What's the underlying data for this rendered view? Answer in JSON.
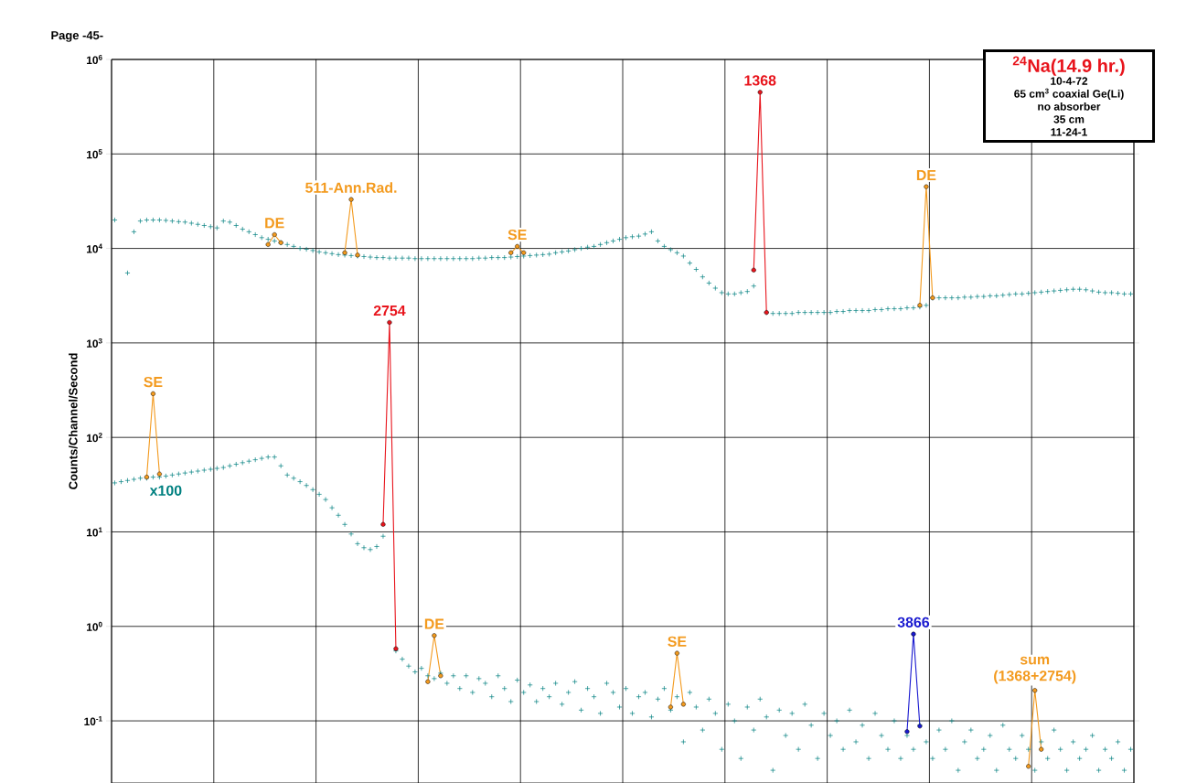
{
  "chart_data": {
    "type": "scatter",
    "ylabel": "Counts/Channel/Second",
    "categories": [
      null,
      null,
      null,
      null,
      null,
      null,
      null,
      null,
      null,
      null,
      null,
      null,
      null,
      null,
      null,
      null,
      null,
      null,
      null,
      null,
      null,
      null,
      null,
      null,
      null,
      null,
      null,
      null,
      null,
      null,
      null,
      null,
      null,
      null,
      null,
      null,
      null,
      null,
      null,
      null,
      null,
      null,
      null,
      null,
      null,
      null,
      null,
      null,
      null,
      null,
      null,
      null,
      null,
      null,
      null,
      null,
      null,
      null,
      null,
      null,
      null,
      null,
      null,
      null,
      null,
      null,
      null,
      null,
      null,
      null,
      null,
      null,
      null,
      null,
      null,
      null,
      null,
      null,
      null,
      null,
      null,
      null,
      null,
      null,
      null,
      null,
      null,
      null,
      null,
      null,
      null,
      null,
      null,
      null,
      null,
      null,
      null,
      null,
      null,
      null,
      null,
      null,
      null,
      null,
      null,
      null,
      null,
      null,
      null,
      null,
      null,
      null,
      null,
      null,
      null,
      null,
      null,
      null,
      null,
      null,
      null,
      null,
      null,
      null,
      null,
      null,
      null,
      null,
      null,
      null,
      null,
      null,
      null,
      null,
      null,
      null,
      null,
      null,
      null,
      null,
      null,
      null,
      null,
      null,
      null,
      null,
      null,
      null,
      null,
      null,
      null,
      null,
      null,
      null,
      null,
      null,
      null,
      null,
      null,
      null
    ],
    "ylim": [
      0.022,
      1000000
    ],
    "log": true,
    "yticks": [
      {
        "value": 0.1,
        "label": "10$^{-1}$"
      },
      {
        "value": 1,
        "label": "10$^{0}$"
      },
      {
        "value": 10,
        "label": "10$^{1}$"
      },
      {
        "value": 100,
        "label": "10$^{2}$"
      },
      {
        "value": 1000,
        "label": "10$^{3}$"
      },
      {
        "value": 10000,
        "label": "10$^{4}$"
      },
      {
        "value": 100000,
        "label": "10$^{5}$"
      },
      {
        "value": 1000000,
        "label": "10$^{6}$"
      }
    ],
    "tick_labels": "y",
    "grid": true,
    "series": [
      {
        "marker": "cross",
        "color": "#008080",
        "values": [
          20000,
          null,
          5500,
          15000,
          19500,
          20000,
          20000,
          20000,
          19800,
          19500,
          19200,
          19000,
          18500,
          18000,
          17500,
          17000,
          16500,
          19500,
          19000,
          17500,
          16000,
          15000,
          14000,
          13000,
          12500,
          12000,
          11500,
          11000,
          10500,
          10000,
          9800,
          9500,
          9200,
          9000,
          8800,
          8600,
          8500,
          8400,
          8300,
          8200,
          8100,
          8000,
          8000,
          7900,
          7900,
          7900,
          7900,
          7800,
          7800,
          7800,
          7800,
          7800,
          7800,
          7800,
          7800,
          7800,
          7800,
          7900,
          7900,
          8000,
          8000,
          8000,
          8100,
          8200,
          8300,
          8400,
          8500,
          8600,
          8700,
          9000,
          9200,
          9400,
          9700,
          10000,
          10300,
          10500,
          11000,
          11500,
          12000,
          12500,
          13000,
          13300,
          13500,
          14200,
          15000,
          12000,
          10500,
          9700,
          9000,
          8300,
          7000,
          6000,
          5000,
          4300,
          3800,
          3400,
          3300,
          3300,
          3400,
          3500,
          4000,
          null,
          2100,
          2050,
          2050,
          2050,
          2050,
          2100,
          2100,
          2100,
          2100,
          2100,
          2100,
          2150,
          2150,
          2200,
          2200,
          2200,
          2200,
          2250,
          2250,
          2300,
          2300,
          2300,
          2350,
          2350,
          2400,
          2500,
          3000,
          3000,
          3000,
          3000,
          3000,
          3050,
          3050,
          3100,
          3100,
          3150,
          3150,
          3200,
          3250,
          3300,
          3300,
          3350,
          3400,
          3450,
          3500,
          3550,
          3600,
          3650,
          3700,
          3700,
          3650,
          3550,
          3450,
          3400,
          3400,
          3350,
          3300,
          3300
        ]
      },
      {
        "marker": "cross",
        "color": "#008080",
        "values": [
          33,
          34,
          35,
          36,
          37,
          37,
          38,
          38,
          39,
          40,
          41,
          42,
          43,
          44,
          45,
          46,
          47,
          48,
          50,
          52,
          54,
          56,
          58,
          60,
          62,
          62,
          50,
          40,
          37,
          34,
          31,
          28,
          25,
          22,
          18,
          15,
          12,
          9.5,
          7.5,
          6.8,
          6.5,
          7,
          9,
          null,
          null,
          null,
          null,
          null,
          null,
          null,
          null,
          null,
          null,
          null,
          null,
          null,
          null,
          null,
          null,
          null,
          null,
          null,
          null,
          null,
          null,
          null,
          null,
          null,
          null,
          null,
          null,
          null,
          null,
          null,
          null,
          null,
          null,
          null,
          null,
          null,
          null,
          null,
          null,
          null,
          null,
          null,
          null,
          null,
          null,
          null,
          null,
          null,
          null,
          null,
          null,
          null,
          null,
          null,
          null,
          null,
          null,
          null,
          null,
          null,
          null,
          null,
          null,
          null,
          null,
          null,
          null,
          null,
          null,
          null,
          null,
          null,
          null,
          null,
          null,
          null,
          null,
          null,
          null,
          null,
          null,
          null,
          null,
          null,
          null,
          null,
          null,
          null,
          null,
          null,
          null,
          null,
          null,
          null,
          null,
          null,
          null,
          null,
          null,
          null,
          null,
          null,
          null,
          null,
          null,
          null,
          null,
          null,
          null,
          null,
          null,
          null,
          null,
          null,
          null,
          null
        ]
      },
      {
        "marker": "cross",
        "color": "#008080",
        "values": [
          null,
          null,
          null,
          null,
          null,
          null,
          null,
          null,
          null,
          null,
          null,
          null,
          null,
          null,
          null,
          null,
          null,
          null,
          null,
          null,
          null,
          null,
          null,
          null,
          null,
          null,
          null,
          null,
          null,
          null,
          null,
          null,
          null,
          null,
          null,
          null,
          null,
          null,
          null,
          null,
          null,
          null,
          null,
          null,
          0.55,
          0.45,
          0.38,
          0.33,
          0.36,
          0.3,
          0.28,
          0.32,
          0.25,
          0.3,
          0.22,
          0.3,
          0.2,
          0.28,
          0.25,
          0.18,
          0.3,
          0.22,
          0.16,
          0.27,
          0.2,
          0.24,
          0.16,
          0.22,
          0.18,
          0.25,
          0.15,
          0.2,
          0.26,
          0.13,
          0.22,
          0.18,
          0.12,
          0.25,
          0.2,
          0.14,
          0.22,
          0.12,
          0.18,
          0.2,
          0.11,
          0.17,
          0.22,
          0.13,
          0.18,
          0.06,
          0.2,
          0.14,
          0.08,
          0.17,
          0.12,
          0.05,
          0.15,
          0.1,
          0.04,
          0.14,
          0.08,
          0.17,
          0.11,
          0.03,
          0.13,
          0.07,
          0.12,
          0.05,
          0.15,
          0.09,
          0.04,
          0.12,
          0.07,
          0.1,
          0.05,
          0.13,
          0.06,
          0.09,
          0.04,
          0.12,
          0.07,
          0.05,
          0.1,
          0.04,
          0.07,
          0.05,
          0.09,
          0.06,
          0.04,
          0.08,
          0.05,
          0.1,
          0.03,
          0.06,
          0.08,
          0.04,
          0.05,
          0.07,
          0.03,
          0.09,
          0.05,
          0.04,
          0.07,
          0.05,
          0.03,
          0.06,
          0.04,
          0.08,
          0.05,
          0.03,
          0.06,
          0.04,
          0.05,
          0.07,
          0.03,
          0.05,
          0.04,
          0.06,
          0.03,
          0.05
        ]
      },
      {
        "type": "line",
        "marker": "circle",
        "color": "#f39a1e",
        "values": [
          null,
          null,
          null,
          null,
          null,
          38,
          290,
          41,
          null,
          null,
          null,
          null,
          null,
          null,
          null,
          null,
          null,
          null,
          null,
          null,
          null,
          null,
          null,
          null,
          11000,
          14000,
          11500,
          null,
          null,
          null,
          null,
          null,
          null,
          null,
          null,
          null,
          9000,
          33000,
          8500,
          null,
          null,
          null,
          null,
          null,
          null,
          null,
          null,
          null,
          null,
          0.26,
          0.8,
          0.3,
          null,
          null,
          null,
          null,
          null,
          null,
          null,
          null,
          null,
          null,
          9000,
          10500,
          9000,
          null,
          null,
          null,
          null,
          null,
          null,
          null,
          null,
          null,
          null,
          null,
          null,
          null,
          null,
          null,
          null,
          null,
          null,
          null,
          null,
          null,
          null,
          0.14,
          0.52,
          0.15,
          null,
          null,
          null,
          null,
          null,
          null,
          null,
          null,
          null,
          null,
          null,
          null,
          null,
          null,
          null,
          null,
          null,
          null,
          null,
          null,
          null,
          null,
          null,
          null,
          null,
          null,
          null,
          null,
          null,
          null,
          null,
          null,
          null,
          null,
          null,
          null,
          2500,
          45000,
          3000,
          null,
          null,
          null,
          null,
          null,
          null,
          null,
          null,
          null,
          null,
          null,
          null,
          null,
          null,
          0.033,
          0.21,
          0.05,
          null,
          null,
          null,
          null,
          null,
          null,
          null,
          null,
          null,
          null,
          null,
          null,
          null,
          null
        ]
      },
      {
        "type": "line",
        "marker": "circle",
        "color": "#e8141c",
        "values": [
          null,
          null,
          null,
          null,
          null,
          null,
          null,
          null,
          null,
          null,
          null,
          null,
          null,
          null,
          null,
          null,
          null,
          null,
          null,
          null,
          null,
          null,
          null,
          null,
          null,
          null,
          null,
          null,
          null,
          null,
          null,
          null,
          null,
          null,
          null,
          null,
          null,
          null,
          null,
          null,
          null,
          null,
          12,
          1650,
          0.58,
          null,
          null,
          null,
          null,
          null,
          null,
          null,
          null,
          null,
          null,
          null,
          null,
          null,
          null,
          null,
          null,
          null,
          null,
          null,
          null,
          null,
          null,
          null,
          null,
          null,
          null,
          null,
          null,
          null,
          null,
          null,
          null,
          null,
          null,
          null,
          null,
          null,
          null,
          null,
          null,
          null,
          null,
          null,
          null,
          null,
          null,
          null,
          null,
          null,
          null,
          null,
          null,
          null,
          null,
          null,
          5900,
          450000,
          2100,
          null,
          null,
          null,
          null,
          null,
          null,
          null,
          null,
          null,
          null,
          null,
          null,
          null,
          null,
          null,
          null,
          null,
          null,
          null,
          null,
          null,
          null,
          null,
          null,
          null,
          null,
          null,
          null,
          null,
          null,
          null,
          null,
          null,
          null,
          null,
          null,
          null,
          null,
          null,
          null,
          null,
          null,
          null,
          null,
          null,
          null,
          null,
          null,
          null,
          null,
          null,
          null,
          null,
          null,
          null,
          null,
          null
        ]
      },
      {
        "type": "line",
        "marker": "circle",
        "color": "#1a1ad0",
        "values": [
          null,
          null,
          null,
          null,
          null,
          null,
          null,
          null,
          null,
          null,
          null,
          null,
          null,
          null,
          null,
          null,
          null,
          null,
          null,
          null,
          null,
          null,
          null,
          null,
          null,
          null,
          null,
          null,
          null,
          null,
          null,
          null,
          null,
          null,
          null,
          null,
          null,
          null,
          null,
          null,
          null,
          null,
          null,
          null,
          null,
          null,
          null,
          null,
          null,
          null,
          null,
          null,
          null,
          null,
          null,
          null,
          null,
          null,
          null,
          null,
          null,
          null,
          null,
          null,
          null,
          null,
          null,
          null,
          null,
          null,
          null,
          null,
          null,
          null,
          null,
          null,
          null,
          null,
          null,
          null,
          null,
          null,
          null,
          null,
          null,
          null,
          null,
          null,
          null,
          null,
          null,
          null,
          null,
          null,
          null,
          null,
          null,
          null,
          null,
          null,
          null,
          null,
          null,
          null,
          null,
          null,
          null,
          null,
          null,
          null,
          null,
          null,
          null,
          null,
          null,
          null,
          null,
          null,
          null,
          null,
          null,
          null,
          null,
          null,
          0.077,
          0.83,
          0.088,
          null,
          null,
          null,
          null,
          null,
          null,
          null,
          null,
          null,
          null,
          null,
          null,
          null,
          null,
          null,
          null,
          null,
          null,
          null,
          null,
          null,
          null,
          null,
          null,
          null,
          null,
          null,
          null,
          null,
          null,
          null,
          null,
          null
        ]
      }
    ],
    "annotations": [
      "Page -45-",
      "$^{24}$Na(14.9 hr.)",
      "10-4-72",
      "65 cm$^{3}$ coaxial Ge(Li)",
      "no absorber",
      "35 cm",
      "11-24-1",
      {
        "text": "SE",
        "y": 290
      },
      {
        "text": "x100",
        "y": 39
      },
      {
        "text": "DE",
        "y": 14000
      },
      {
        "text": "511-Ann.Rad.",
        "y": 33000
      },
      {
        "text": "2754",
        "y": 1650
      },
      {
        "text": "DE",
        "y": 0.8
      },
      {
        "text": "SE",
        "y": 10500
      },
      {
        "text": "SE",
        "y": 0.52
      },
      {
        "text": "1368",
        "y": 450000
      },
      {
        "text": "3866",
        "y": 0.83
      },
      {
        "text": "DE",
        "y": 45000
      },
      {
        "text": "sum (1368+2754)",
        "y": 0.21
      }
    ]
  }
}
